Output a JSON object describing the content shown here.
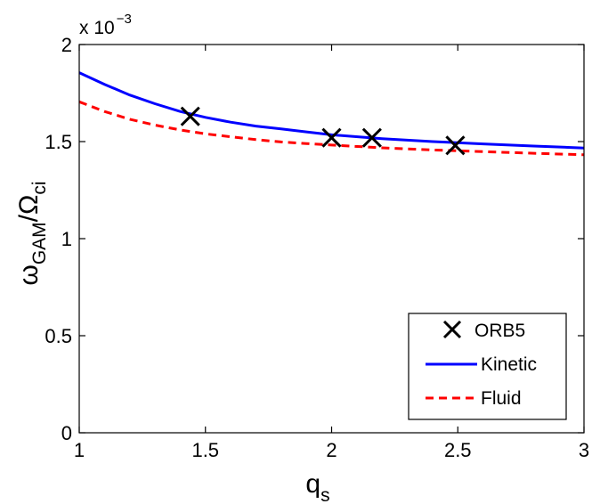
{
  "chart_data": {
    "type": "line",
    "xlabel_main": "q",
    "xlabel_sub": "s",
    "ylabel_omega": "ω",
    "ylabel_omega_sub": "GAM",
    "ylabel_slash": "/",
    "ylabel_Omega": "Ω",
    "ylabel_Omega_sub": "ci",
    "y_multiplier_base": "x 10",
    "y_multiplier_exp": "−3",
    "xlim": [
      1,
      3
    ],
    "ylim": [
      0,
      2
    ],
    "x_ticks": [
      1,
      1.5,
      2,
      2.5,
      3
    ],
    "x_tick_labels": [
      "1",
      "1.5",
      "2",
      "2.5",
      "3"
    ],
    "y_ticks": [
      0,
      0.5,
      1,
      1.5,
      2
    ],
    "y_tick_labels": [
      "0",
      "0.5",
      "1",
      "1.5",
      "2"
    ],
    "grid": false,
    "legend_position": "bottom-right",
    "series": [
      {
        "name": "ORB5",
        "style": "markers-x",
        "color": "#000000",
        "x": [
          1.44,
          2.0,
          2.16,
          2.49
        ],
        "y": [
          1.63,
          1.52,
          1.52,
          1.48
        ]
      },
      {
        "name": "Kinetic",
        "style": "solid",
        "color": "#0000ff",
        "x": [
          1.0,
          1.1,
          1.2,
          1.3,
          1.4,
          1.5,
          1.6,
          1.7,
          1.8,
          1.9,
          2.0,
          2.2,
          2.4,
          2.6,
          2.8,
          3.0
        ],
        "y": [
          1.855,
          1.795,
          1.74,
          1.695,
          1.655,
          1.625,
          1.6,
          1.58,
          1.565,
          1.55,
          1.535,
          1.515,
          1.5,
          1.488,
          1.477,
          1.467
        ]
      },
      {
        "name": "Fluid",
        "style": "dashed",
        "color": "#ff0000",
        "x": [
          1.0,
          1.1,
          1.2,
          1.3,
          1.4,
          1.5,
          1.6,
          1.7,
          1.8,
          1.9,
          2.0,
          2.2,
          2.4,
          2.6,
          2.8,
          3.0
        ],
        "y": [
          1.705,
          1.655,
          1.615,
          1.585,
          1.56,
          1.54,
          1.525,
          1.51,
          1.498,
          1.49,
          1.482,
          1.468,
          1.457,
          1.448,
          1.44,
          1.432
        ]
      }
    ]
  }
}
